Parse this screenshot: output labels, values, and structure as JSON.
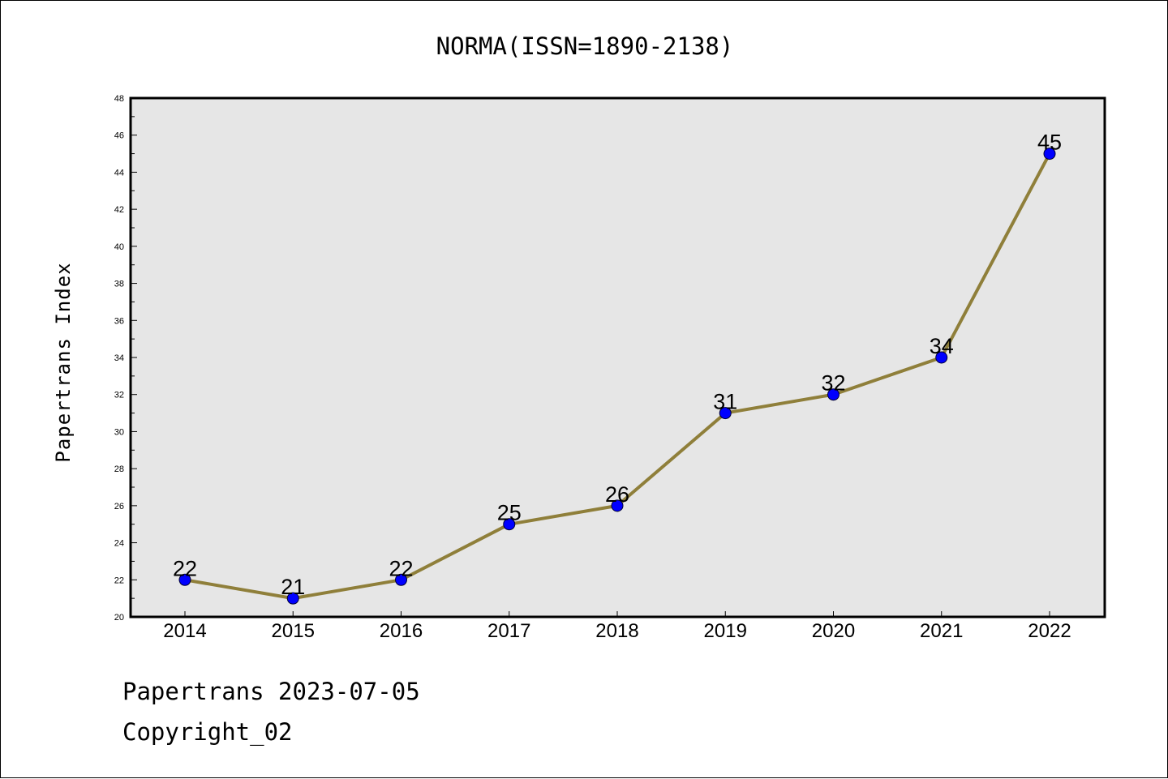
{
  "chart_data": {
    "type": "line",
    "title": "NORMA(ISSN=1890-2138)",
    "xlabel": "",
    "ylabel": "Papertrans Index",
    "categories": [
      "2014",
      "2015",
      "2016",
      "2017",
      "2018",
      "2019",
      "2020",
      "2021",
      "2022"
    ],
    "series": [
      {
        "values": [
          22,
          21,
          22,
          25,
          26,
          31,
          32,
          34,
          45
        ]
      }
    ],
    "ylim": [
      20,
      48
    ],
    "yticks": [
      20,
      22,
      24,
      26,
      28,
      30,
      32,
      34,
      36,
      38,
      40,
      42,
      44,
      46,
      48
    ],
    "grid": false,
    "data_labels": true,
    "colors": {
      "line": "#8f7f3a",
      "marker": "#0000ff",
      "plot_background": "#e6e6e6"
    }
  },
  "footer": {
    "date_line": "Papertrans 2023-07-05",
    "copyright_line": "Copyright_02"
  }
}
